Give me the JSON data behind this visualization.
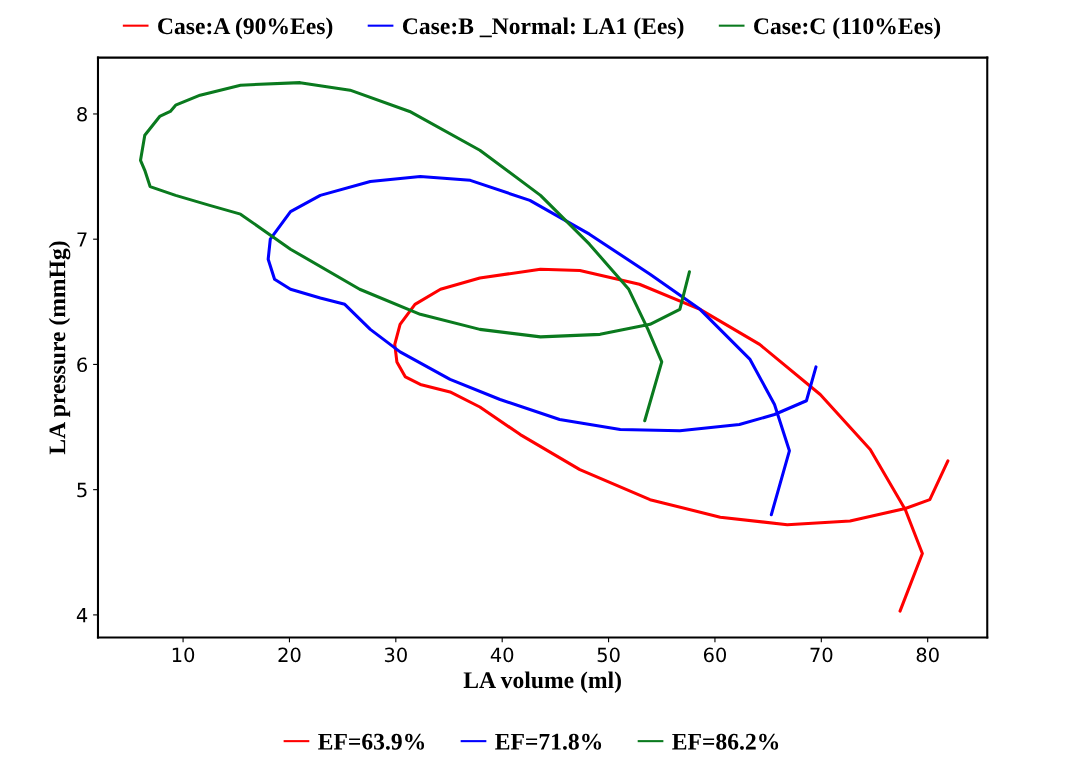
{
  "chart_data": {
    "type": "line",
    "xlabel": "LA volume (ml)",
    "ylabel": "LA pressure (mmHg)",
    "xlim": [
      2.0,
      85.6
    ],
    "ylim": [
      3.82,
      8.45
    ],
    "xticks": [
      10,
      20,
      30,
      40,
      50,
      60,
      70,
      80
    ],
    "yticks": [
      4,
      5,
      6,
      7,
      8
    ],
    "grid": false,
    "legend": "top",
    "marker": "none",
    "line_style": "solid",
    "annotations": [
      "EF=63.9%",
      "EF=71.8%",
      "EF=86.2%"
    ],
    "series": [
      {
        "name": "Case:A (90%Ees)",
        "color": "#ff0000",
        "x": [
          81.9,
          80.2,
          77.9,
          72.7,
          66.8,
          60.5,
          53.9,
          47.3,
          41.7,
          37.9,
          35.1,
          32.3,
          30.9,
          30.1,
          29.9,
          30.4,
          31.8,
          34.2,
          37.9,
          43.6,
          47.3,
          52.9,
          58.6,
          64.2,
          69.9,
          74.6,
          77.9,
          79.5,
          77.4
        ],
        "values": [
          5.23,
          4.92,
          4.85,
          4.75,
          4.72,
          4.78,
          4.92,
          5.16,
          5.44,
          5.66,
          5.78,
          5.84,
          5.9,
          6.02,
          6.16,
          6.32,
          6.48,
          6.6,
          6.69,
          6.76,
          6.75,
          6.64,
          6.44,
          6.16,
          5.76,
          5.32,
          4.84,
          4.49,
          4.03
        ]
      },
      {
        "name": "Case:B _Normal: LA1 (Ees)",
        "color": "#0000ff",
        "x": [
          69.5,
          68.6,
          65.6,
          62.3,
          56.7,
          51.1,
          45.4,
          39.8,
          35.1,
          30.4,
          27.6,
          25.2,
          22.9,
          20.1,
          18.6,
          18.0,
          18.2,
          20.1,
          22.9,
          27.6,
          32.3,
          37.0,
          42.6,
          48.2,
          53.9,
          58.6,
          63.3,
          65.6,
          67.0,
          65.3
        ],
        "values": [
          5.98,
          5.71,
          5.6,
          5.52,
          5.47,
          5.48,
          5.56,
          5.72,
          5.88,
          6.1,
          6.28,
          6.48,
          6.53,
          6.6,
          6.68,
          6.84,
          7.0,
          7.22,
          7.35,
          7.46,
          7.5,
          7.47,
          7.31,
          7.04,
          6.72,
          6.44,
          6.04,
          5.68,
          5.31,
          4.8
        ]
      },
      {
        "name": "Case:C (110%Ees)",
        "color": "#0a7a1e",
        "x": [
          57.6,
          56.7,
          53.9,
          49.2,
          43.6,
          37.9,
          32.3,
          26.6,
          20.1,
          15.4,
          12.5,
          9.3,
          6.9,
          6.4,
          6.0,
          6.4,
          7.8,
          8.8,
          9.3,
          11.6,
          15.4,
          21.0,
          25.7,
          31.3,
          37.9,
          43.6,
          48.2,
          51.9,
          53.7,
          55.0,
          53.4
        ],
        "values": [
          6.74,
          6.44,
          6.32,
          6.24,
          6.22,
          6.28,
          6.4,
          6.6,
          6.92,
          7.2,
          7.27,
          7.35,
          7.42,
          7.55,
          7.63,
          7.83,
          7.98,
          8.02,
          8.07,
          8.15,
          8.23,
          8.25,
          8.19,
          8.02,
          7.71,
          7.35,
          6.96,
          6.6,
          6.28,
          6.02,
          5.55
        ]
      }
    ]
  }
}
